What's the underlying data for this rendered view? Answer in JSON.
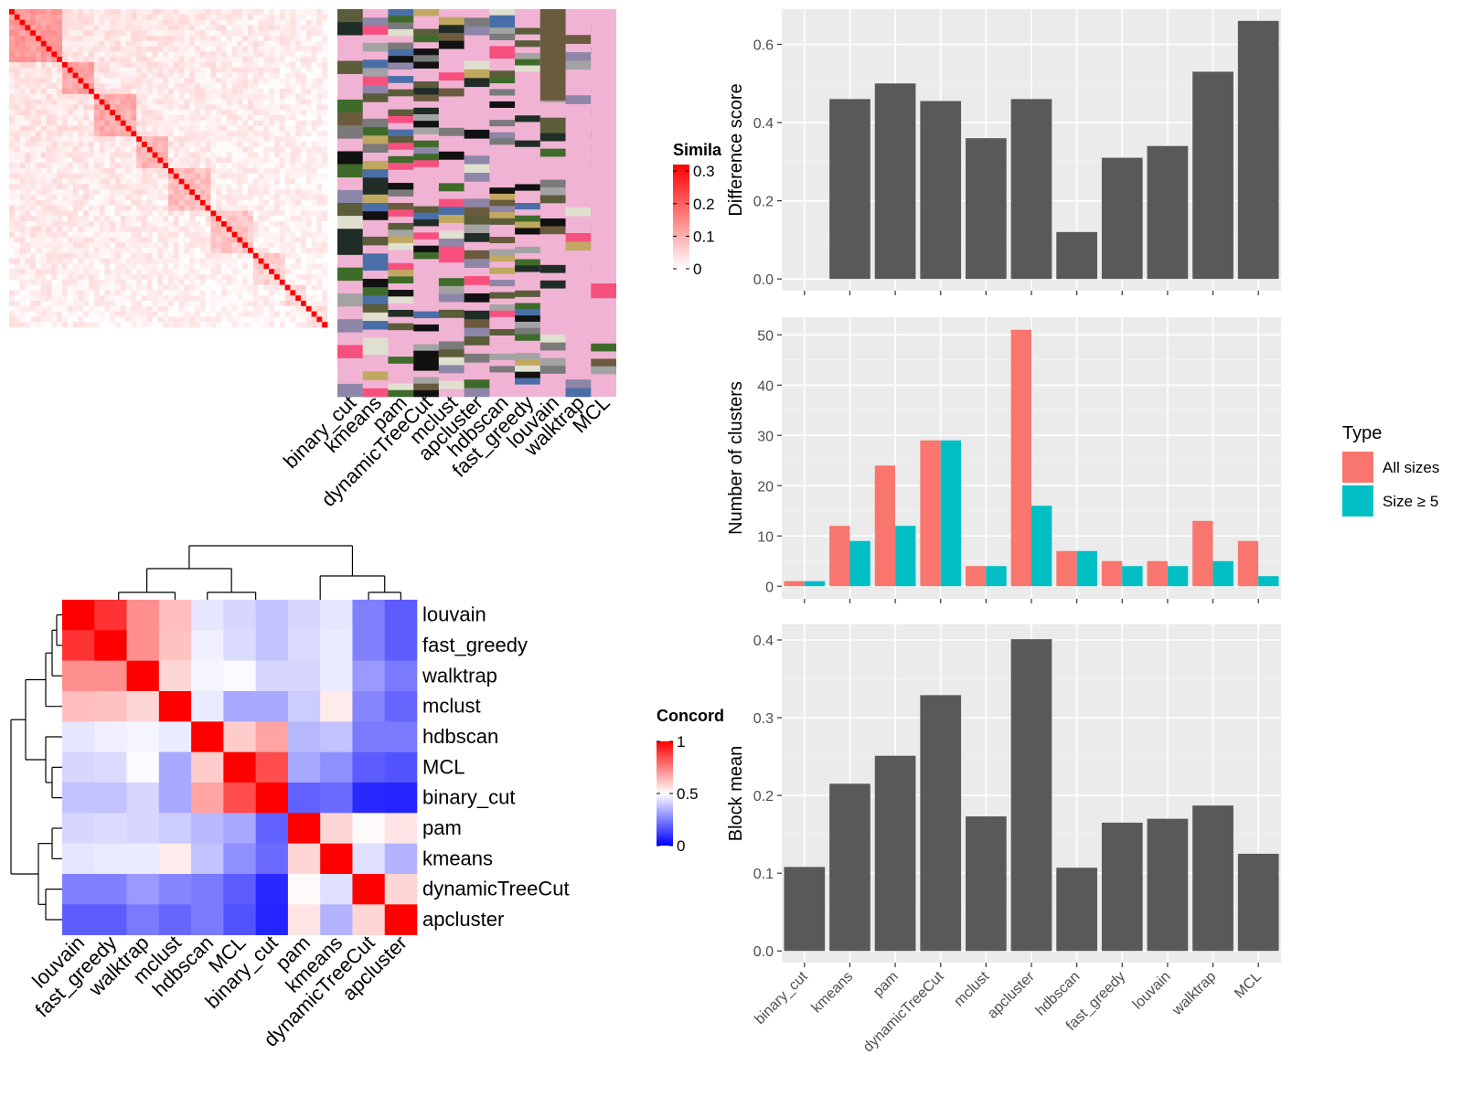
{
  "colors": {
    "panel_bg": "#ebebeb",
    "grid_major": "#ffffff",
    "bar_grey": "#595959",
    "all_sizes": "#f8766d",
    "size_ge5": "#00bfc4",
    "heat_high_red": "#ff0000",
    "heat_mid_white": "#ffffff",
    "heat_low_blue": "#0000ff",
    "membership_bg": "#f1b3d4"
  },
  "methods_order": [
    "binary_cut",
    "kmeans",
    "pam",
    "dynamicTreeCut",
    "mclust",
    "apcluster",
    "hdbscan",
    "fast_greedy",
    "louvain",
    "walktrap",
    "MCL"
  ],
  "similarity_heatmap": {
    "legend_title": "Simila",
    "legend_ticks": [
      "0.3",
      "0.2",
      "0.1",
      "0"
    ],
    "legend_values": [
      0.3,
      0.2,
      0.1,
      0
    ],
    "column_labels": [
      "binary_cut",
      "kmeans",
      "pam",
      "dynamicTreeCut",
      "mclust",
      "apcluster",
      "hdbscan",
      "fast_greedy",
      "louvain",
      "walktrap",
      "MCL"
    ]
  },
  "concordance_heatmap": {
    "legend_title": "Concord",
    "legend_ticks": [
      "1",
      "0.5",
      "0"
    ],
    "legend_values": [
      1,
      0.5,
      0
    ],
    "labels": [
      "louvain",
      "fast_greedy",
      "walktrap",
      "mclust",
      "hdbscan",
      "MCL",
      "binary_cut",
      "pam",
      "kmeans",
      "dynamicTreeCut",
      "apcluster"
    ],
    "matrix": [
      [
        1.0,
        0.9,
        0.72,
        0.63,
        0.45,
        0.42,
        0.38,
        0.42,
        0.45,
        0.25,
        0.18
      ],
      [
        0.9,
        1.0,
        0.72,
        0.62,
        0.47,
        0.43,
        0.38,
        0.43,
        0.46,
        0.25,
        0.18
      ],
      [
        0.72,
        0.72,
        1.0,
        0.58,
        0.48,
        0.49,
        0.42,
        0.42,
        0.46,
        0.3,
        0.24
      ],
      [
        0.63,
        0.62,
        0.58,
        1.0,
        0.46,
        0.33,
        0.33,
        0.4,
        0.54,
        0.26,
        0.2
      ],
      [
        0.45,
        0.47,
        0.48,
        0.46,
        1.0,
        0.6,
        0.68,
        0.36,
        0.38,
        0.24,
        0.24
      ],
      [
        0.42,
        0.43,
        0.49,
        0.33,
        0.6,
        1.0,
        0.85,
        0.33,
        0.28,
        0.18,
        0.16
      ],
      [
        0.38,
        0.38,
        0.42,
        0.33,
        0.68,
        0.85,
        1.0,
        0.19,
        0.21,
        0.08,
        0.07
      ],
      [
        0.42,
        0.43,
        0.42,
        0.4,
        0.36,
        0.33,
        0.19,
        1.0,
        0.58,
        0.51,
        0.55
      ],
      [
        0.45,
        0.46,
        0.46,
        0.54,
        0.38,
        0.28,
        0.21,
        0.58,
        1.0,
        0.44,
        0.35
      ],
      [
        0.25,
        0.25,
        0.3,
        0.26,
        0.24,
        0.18,
        0.08,
        0.51,
        0.44,
        1.0,
        0.58
      ],
      [
        0.18,
        0.18,
        0.24,
        0.2,
        0.24,
        0.16,
        0.07,
        0.55,
        0.35,
        0.58,
        1.0
      ]
    ]
  },
  "chart_data": [
    {
      "type": "bar",
      "xlabel": "",
      "ylabel": "Difference score",
      "categories": [
        "binary_cut",
        "kmeans",
        "pam",
        "dynamicTreeCut",
        "mclust",
        "apcluster",
        "hdbscan",
        "fast_greedy",
        "louvain",
        "walktrap",
        "MCL"
      ],
      "values": [
        0.0,
        0.46,
        0.5,
        0.455,
        0.36,
        0.46,
        0.12,
        0.31,
        0.34,
        0.53,
        0.66
      ],
      "ylim": [
        -0.03,
        0.69
      ],
      "yticks": [
        0.0,
        0.2,
        0.4,
        0.6
      ],
      "ytick_labels": [
        "0.0",
        "0.2",
        "0.4",
        "0.6"
      ],
      "grid": true,
      "show_x_tick_labels": false
    },
    {
      "type": "bar",
      "xlabel": "",
      "ylabel": "Number of clusters",
      "categories": [
        "binary_cut",
        "kmeans",
        "pam",
        "dynamicTreeCut",
        "mclust",
        "apcluster",
        "hdbscan",
        "fast_greedy",
        "louvain",
        "walktrap",
        "MCL"
      ],
      "series": [
        {
          "name": "All sizes",
          "values": [
            1,
            12,
            24,
            29,
            4,
            51,
            7,
            5,
            5,
            13,
            9
          ]
        },
        {
          "name": "Size ≥ 5",
          "values": [
            1,
            9,
            12,
            29,
            4,
            16,
            7,
            4,
            4,
            5,
            2
          ]
        }
      ],
      "ylim": [
        -2.5,
        53.5
      ],
      "yticks": [
        0,
        10,
        20,
        30,
        40,
        50
      ],
      "ytick_labels": [
        "0",
        "10",
        "20",
        "30",
        "40",
        "50"
      ],
      "legend": {
        "title": "Type",
        "position": "right"
      },
      "grid": true,
      "show_x_tick_labels": false
    },
    {
      "type": "bar",
      "xlabel": "",
      "ylabel": "Block mean",
      "categories": [
        "binary_cut",
        "kmeans",
        "pam",
        "dynamicTreeCut",
        "mclust",
        "apcluster",
        "hdbscan",
        "fast_greedy",
        "louvain",
        "walktrap",
        "MCL"
      ],
      "values": [
        0.108,
        0.215,
        0.251,
        0.329,
        0.173,
        0.401,
        0.107,
        0.165,
        0.17,
        0.187,
        0.125
      ],
      "ylim": [
        -0.015,
        0.42
      ],
      "yticks": [
        0.0,
        0.1,
        0.2,
        0.3,
        0.4
      ],
      "ytick_labels": [
        "0.0",
        "0.1",
        "0.2",
        "0.3",
        "0.4"
      ],
      "grid": true,
      "show_x_tick_labels": true
    }
  ]
}
